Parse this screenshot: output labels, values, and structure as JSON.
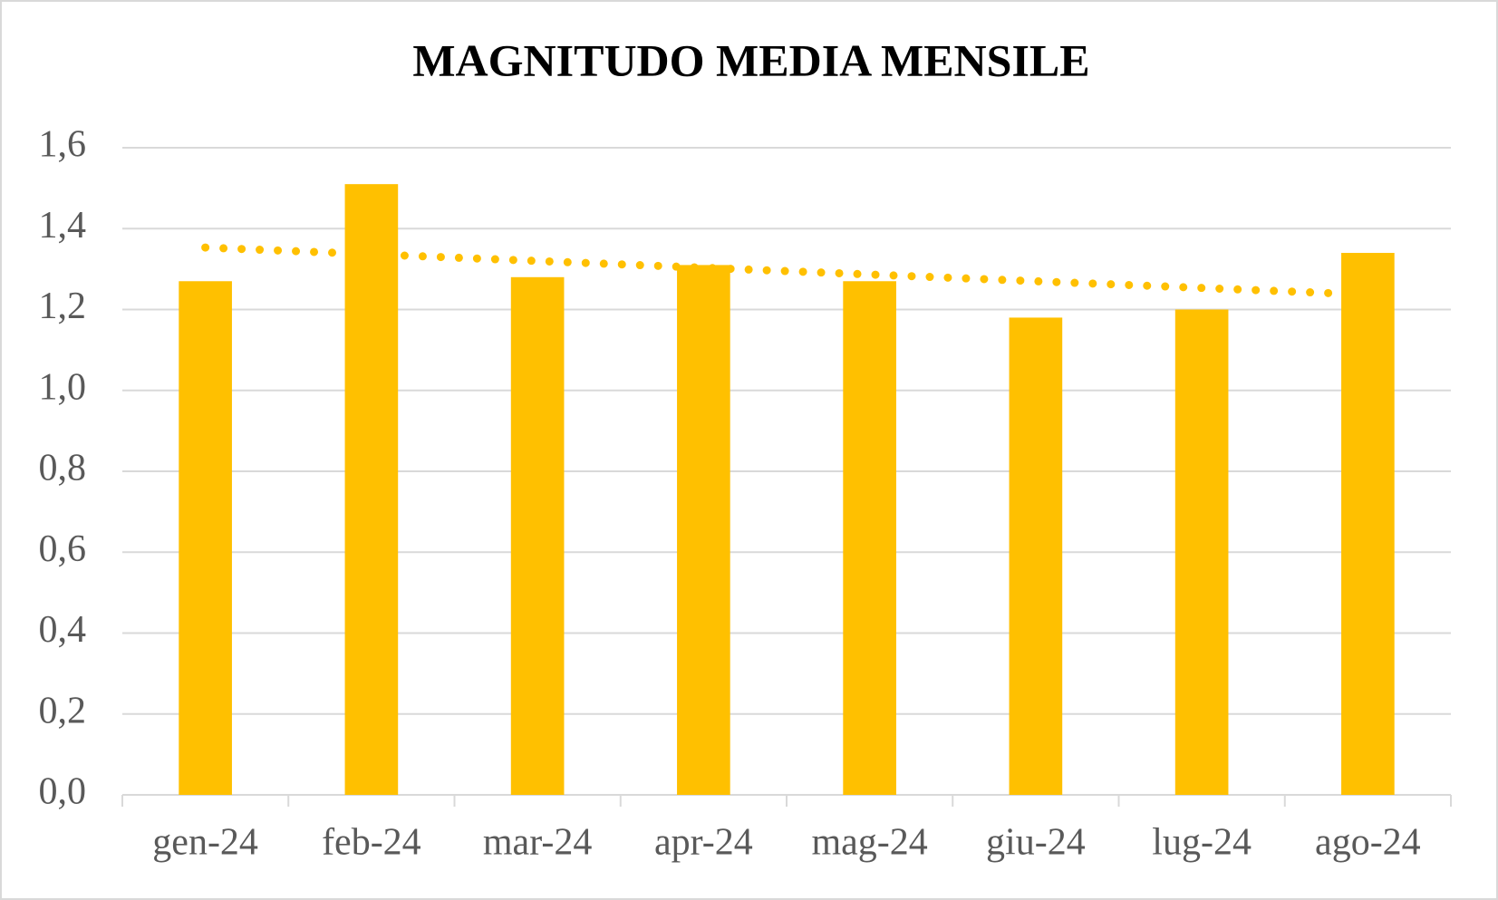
{
  "chart_data": {
    "type": "bar",
    "title": "MAGNITUDO MEDIA MENSILE",
    "categories": [
      "gen-24",
      "feb-24",
      "mar-24",
      "apr-24",
      "mag-24",
      "giu-24",
      "lug-24",
      "ago-24"
    ],
    "values": [
      1.27,
      1.51,
      1.28,
      1.31,
      1.27,
      1.18,
      1.2,
      1.34
    ],
    "color": "#ffc000",
    "trendline": "linear",
    "ylim": [
      0,
      1.6
    ],
    "yticks": [
      {
        "value": 0,
        "label": "0,0"
      },
      {
        "value": 0.2,
        "label": "0,2"
      },
      {
        "value": 0.4,
        "label": "0,4"
      },
      {
        "value": 0.6,
        "label": "0,6"
      },
      {
        "value": 0.8,
        "label": "0,8"
      },
      {
        "value": 1.0,
        "label": "1,0"
      },
      {
        "value": 1.2,
        "label": "1,2"
      },
      {
        "value": 1.4,
        "label": "1,4"
      },
      {
        "value": 1.6,
        "label": "1,6"
      }
    ],
    "grid": true
  }
}
